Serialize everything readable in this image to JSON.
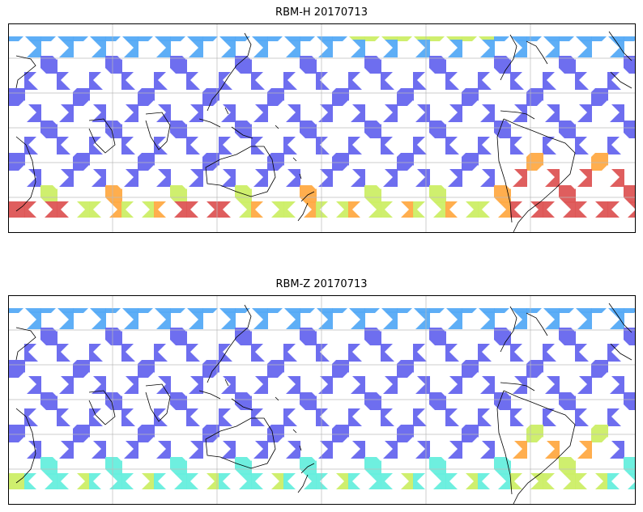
{
  "maps": [
    {
      "title": "RBM-H 20170713",
      "colormap": "jet",
      "gridlines": true,
      "high_regions": [
        "southern-ocean",
        "south-america-south-atlantic"
      ]
    },
    {
      "title": "RBM-Z 20170713",
      "colormap": "jet",
      "gridlines": true,
      "high_regions": [
        "south-america-south-atlantic"
      ]
    }
  ],
  "colors": {
    "low": "#6666ee",
    "low_mid": "#55aaf5",
    "mid": "#66eedd",
    "mid_high": "#ccee66",
    "high": "#ffaa44",
    "max": "#dd5555",
    "coast": "#000000",
    "grid": "#bbbbbb"
  }
}
